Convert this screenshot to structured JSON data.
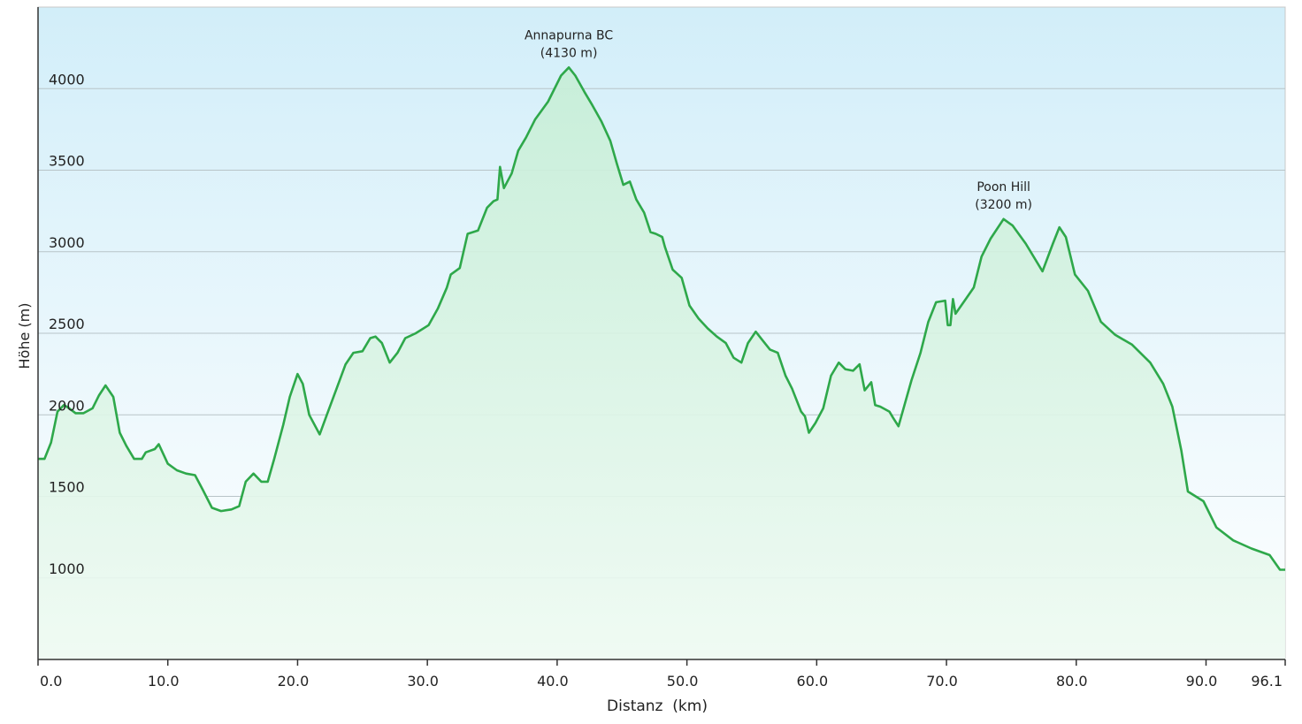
{
  "chart_data": {
    "type": "area",
    "x_label": "Distanz  (km)",
    "y_label": "Höhe (m)",
    "color": "#2ea84a",
    "x": [
      0.0,
      0.5,
      1.0,
      1.5,
      2.0,
      2.4,
      2.9,
      3.5,
      4.2,
      4.7,
      5.2,
      5.8,
      6.3,
      6.8,
      7.4,
      8.0,
      8.3,
      9.0,
      9.3,
      10.0,
      10.7,
      11.4,
      12.1,
      12.7,
      13.4,
      14.1,
      14.9,
      15.5,
      16.0,
      16.6,
      17.2,
      17.7,
      18.2,
      18.9,
      19.4,
      20.0,
      20.4,
      20.9,
      21.7,
      22.3,
      23.0,
      23.7,
      24.3,
      25.0,
      25.6,
      26.0,
      26.5,
      27.1,
      27.7,
      28.3,
      29.1,
      30.1,
      30.8,
      31.5,
      31.8,
      32.5,
      33.1,
      33.9,
      34.6,
      35.1,
      35.4,
      35.6,
      35.9,
      36.5,
      37.0,
      37.6,
      38.3,
      39.3,
      40.3,
      40.9,
      41.4,
      42.1,
      42.7,
      43.4,
      44.1,
      44.6,
      45.1,
      45.6,
      46.1,
      46.7,
      47.2,
      47.6,
      48.1,
      48.3,
      48.9,
      49.6,
      50.2,
      50.9,
      51.6,
      52.3,
      53.0,
      53.6,
      54.2,
      54.7,
      55.3,
      55.8,
      56.4,
      57.0,
      57.6,
      58.1,
      58.8,
      59.1,
      59.4,
      59.9,
      60.5,
      61.1,
      61.7,
      62.2,
      62.8,
      63.3,
      63.7,
      64.2,
      64.5,
      64.9,
      65.6,
      65.9,
      66.3,
      67.3,
      68.0,
      68.6,
      69.2,
      69.9,
      70.1,
      70.3,
      70.5,
      70.7,
      71.4,
      72.1,
      72.7,
      73.4,
      74.4,
      75.1,
      76.1,
      77.4,
      78.2,
      78.7,
      79.2,
      79.9,
      80.9,
      81.9,
      83.0,
      84.3,
      85.7,
      86.7,
      87.4,
      88.1,
      88.6,
      89.8,
      90.8,
      92.1,
      93.5,
      94.9,
      95.7,
      96.1
    ],
    "values": [
      1730,
      1730,
      1830,
      2020,
      2060,
      2040,
      2010,
      2010,
      2040,
      2120,
      2180,
      2110,
      1890,
      1810,
      1730,
      1730,
      1770,
      1790,
      1820,
      1700,
      1660,
      1640,
      1630,
      1540,
      1430,
      1410,
      1420,
      1440,
      1590,
      1640,
      1590,
      1590,
      1730,
      1940,
      2110,
      2250,
      2190,
      2000,
      1880,
      2010,
      2160,
      2310,
      2380,
      2390,
      2470,
      2480,
      2440,
      2320,
      2380,
      2470,
      2500,
      2550,
      2650,
      2780,
      2860,
      2900,
      3110,
      3130,
      3270,
      3310,
      3320,
      3520,
      3390,
      3480,
      3620,
      3700,
      3810,
      3920,
      4080,
      4130,
      4080,
      3980,
      3900,
      3800,
      3680,
      3540,
      3410,
      3430,
      3320,
      3240,
      3120,
      3110,
      3090,
      3030,
      2890,
      2840,
      2670,
      2590,
      2530,
      2480,
      2440,
      2350,
      2320,
      2440,
      2510,
      2460,
      2400,
      2380,
      2240,
      2160,
      2020,
      1990,
      1890,
      1950,
      2040,
      2240,
      2320,
      2280,
      2270,
      2310,
      2150,
      2200,
      2060,
      2050,
      2020,
      1980,
      1930,
      2210,
      2380,
      2570,
      2690,
      2700,
      2550,
      2550,
      2710,
      2620,
      2700,
      2780,
      2970,
      3080,
      3200,
      3160,
      3050,
      2880,
      3050,
      3150,
      3090,
      2860,
      2760,
      2570,
      2490,
      2430,
      2320,
      2190,
      2050,
      1780,
      1530,
      1470,
      1310,
      1230,
      1180,
      1140,
      1050,
      1050
    ],
    "xlim": [
      0,
      96.1
    ],
    "xticks": [
      {
        "value": 0,
        "label": "0.0"
      },
      {
        "value": 10,
        "label": "10.0"
      },
      {
        "value": 20,
        "label": "20.0"
      },
      {
        "value": 30,
        "label": "30.0"
      },
      {
        "value": 40,
        "label": "40.0"
      },
      {
        "value": 50,
        "label": "50.0"
      },
      {
        "value": 60,
        "label": "60.0"
      },
      {
        "value": 70,
        "label": "70.0"
      },
      {
        "value": 80,
        "label": "80.0"
      },
      {
        "value": 90,
        "label": "90.0"
      },
      {
        "value": 96.1,
        "label": "96.1"
      }
    ],
    "ylim": [
      500,
      4500
    ],
    "yticks": [
      1000,
      1500,
      2000,
      2500,
      3000,
      3500,
      4000
    ],
    "grid": true,
    "annotations": [
      {
        "lines": [
          "Annapurna BC",
          "(4130 m)"
        ],
        "x": 40.9,
        "y": 4130
      },
      {
        "lines": [
          "Poon Hill",
          "(3200 m)"
        ],
        "x": 74.4,
        "y": 3200
      }
    ]
  }
}
